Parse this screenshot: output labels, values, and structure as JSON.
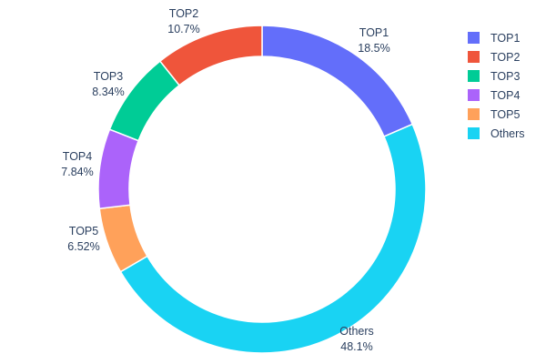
{
  "chart": {
    "background_color": "#ffffff",
    "text_color": "#2a3f5f"
  },
  "chart_data": {
    "type": "pie",
    "subtype": "donut",
    "title": "",
    "hole_ratio": 0.81,
    "legend_position": "right",
    "labels_position": "outside",
    "categories": [
      "TOP1",
      "TOP2",
      "TOP3",
      "TOP4",
      "TOP5",
      "Others"
    ],
    "values": [
      18.5,
      10.7,
      8.34,
      7.84,
      6.52,
      48.1
    ],
    "slices": [
      {
        "label": "TOP1",
        "value": 18.5,
        "pct_label": "18.5%",
        "color": "#636EFA"
      },
      {
        "label": "TOP2",
        "value": 10.7,
        "pct_label": "10.7%",
        "color": "#EF553B"
      },
      {
        "label": "TOP3",
        "value": 8.34,
        "pct_label": "8.34%",
        "color": "#00CC96"
      },
      {
        "label": "TOP4",
        "value": 7.84,
        "pct_label": "7.84%",
        "color": "#AB63FA"
      },
      {
        "label": "TOP5",
        "value": 6.52,
        "pct_label": "6.52%",
        "color": "#FFA15A"
      },
      {
        "label": "Others",
        "value": 48.1,
        "pct_label": "48.1%",
        "color": "#19D3F3"
      }
    ]
  }
}
